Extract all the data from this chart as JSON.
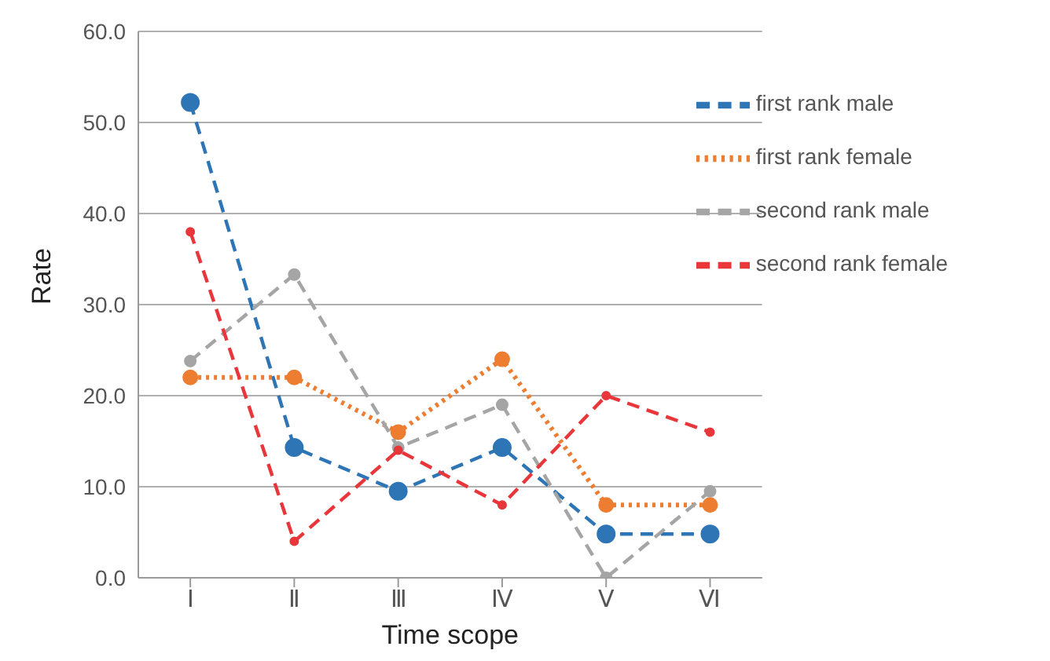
{
  "chart_data": {
    "type": "line",
    "xlabel": "Time scope",
    "ylabel": "Rate",
    "categories": [
      "Ⅰ",
      "Ⅱ",
      "Ⅲ",
      "Ⅳ",
      "Ⅴ",
      "Ⅵ"
    ],
    "series": [
      {
        "name": "first rank male",
        "color": "#2e75b6",
        "line_style": "dashed",
        "values": [
          52.2,
          14.3,
          9.5,
          14.3,
          4.8,
          4.8
        ]
      },
      {
        "name": "first rank female",
        "color": "#ed7d31",
        "line_style": "dotted",
        "values": [
          22,
          22,
          16,
          24,
          8,
          8
        ]
      },
      {
        "name": "second rank male",
        "color": "#a5a5a5",
        "line_style": "dashed",
        "values": [
          23.8,
          33.3,
          14.3,
          19,
          0,
          9.5
        ]
      },
      {
        "name": "second rank female",
        "color": "#e8363a",
        "line_style": "dashed",
        "values": [
          38,
          4,
          14,
          8,
          20,
          16
        ]
      }
    ],
    "ylim": [
      0,
      60
    ],
    "yticks": [
      {
        "value": 0,
        "label": "0.0"
      },
      {
        "value": 10,
        "label": "10.0"
      },
      {
        "value": 20,
        "label": "20.0"
      },
      {
        "value": 30,
        "label": "30.0"
      },
      {
        "value": 40,
        "label": "40.0"
      },
      {
        "value": 50,
        "label": "50.0"
      },
      {
        "value": 60,
        "label": "60.0"
      }
    ],
    "grid": "y",
    "legend": "top right",
    "marker": "circle"
  }
}
